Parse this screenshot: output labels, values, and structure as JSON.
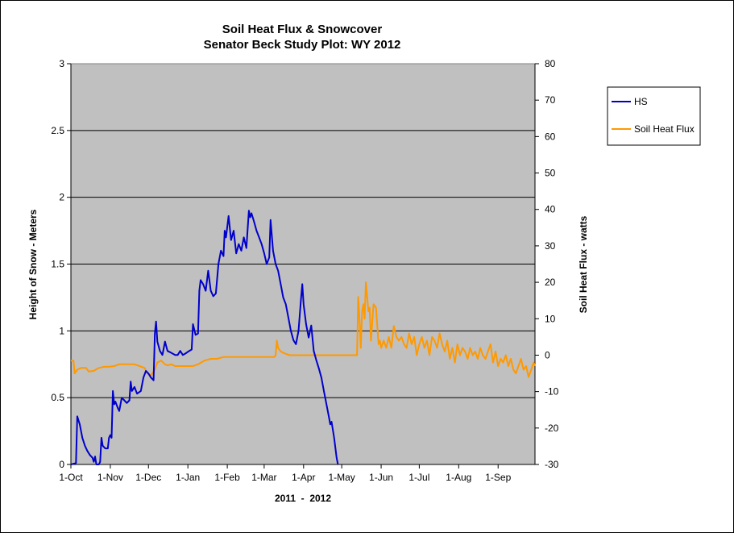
{
  "chart_data": {
    "type": "line",
    "title": "Soil Heat Flux & Snowcover",
    "subtitle": "Senator Beck Study Plot: WY 2012",
    "xlabel": "2011  -  2012",
    "ylabel_left": "Height of Snow - Meters",
    "ylabel_right": "Soil Heat Flux - watts",
    "x_tick_labels": [
      "1-Oct",
      "1-Nov",
      "1-Dec",
      "1-Jan",
      "1-Feb",
      "1-Mar",
      "1-Apr",
      "1-May",
      "1-Jun",
      "1-Jul",
      "1-Aug",
      "1-Sep"
    ],
    "x_tick_days": [
      0,
      31,
      61,
      92,
      123,
      152,
      183,
      213,
      244,
      274,
      305,
      336
    ],
    "x_range_days": [
      0,
      365
    ],
    "ylim_left": [
      0,
      3
    ],
    "y_ticks_left": [
      "0",
      "0.5",
      "1",
      "1.5",
      "2",
      "2.5",
      "3"
    ],
    "ylim_right": [
      -30,
      80
    ],
    "y_ticks_right": [
      "-30",
      "-20",
      "-10",
      "0",
      "10",
      "20",
      "30",
      "40",
      "50",
      "60",
      "70",
      "80"
    ],
    "grid": "horizontal",
    "plot_background": "#c0c0c0",
    "legend_position": "right",
    "series": [
      {
        "name": "HS",
        "axis": "left",
        "color": "#0000cc",
        "points": [
          [
            0,
            0
          ],
          [
            4,
            0.01
          ],
          [
            5,
            0.36
          ],
          [
            7,
            0.3
          ],
          [
            9,
            0.2
          ],
          [
            11,
            0.14
          ],
          [
            13,
            0.1
          ],
          [
            15,
            0.07
          ],
          [
            17,
            0.05
          ],
          [
            18,
            0.02
          ],
          [
            19,
            0.06
          ],
          [
            20,
            0
          ],
          [
            22,
            0
          ],
          [
            23,
            0.02
          ],
          [
            24,
            0.2
          ],
          [
            25,
            0.14
          ],
          [
            27,
            0.12
          ],
          [
            29,
            0.12
          ],
          [
            30,
            0.2
          ],
          [
            31,
            0.22
          ],
          [
            32,
            0.2
          ],
          [
            33,
            0.55
          ],
          [
            34,
            0.45
          ],
          [
            35,
            0.47
          ],
          [
            37,
            0.42
          ],
          [
            38,
            0.4
          ],
          [
            40,
            0.5
          ],
          [
            42,
            0.48
          ],
          [
            44,
            0.46
          ],
          [
            46,
            0.48
          ],
          [
            47,
            0.62
          ],
          [
            48,
            0.55
          ],
          [
            50,
            0.58
          ],
          [
            52,
            0.53
          ],
          [
            55,
            0.55
          ],
          [
            57,
            0.65
          ],
          [
            59,
            0.7
          ],
          [
            61,
            0.68
          ],
          [
            63,
            0.65
          ],
          [
            65,
            0.63
          ],
          [
            66,
            0.98
          ],
          [
            67,
            1.07
          ],
          [
            68,
            0.92
          ],
          [
            70,
            0.85
          ],
          [
            72,
            0.82
          ],
          [
            74,
            0.92
          ],
          [
            76,
            0.85
          ],
          [
            78,
            0.84
          ],
          [
            80,
            0.83
          ],
          [
            82,
            0.82
          ],
          [
            84,
            0.82
          ],
          [
            86,
            0.85
          ],
          [
            88,
            0.82
          ],
          [
            90,
            0.83
          ],
          [
            93,
            0.85
          ],
          [
            95,
            0.86
          ],
          [
            96,
            1.05
          ],
          [
            98,
            0.97
          ],
          [
            100,
            0.98
          ],
          [
            101,
            1.3
          ],
          [
            102,
            1.38
          ],
          [
            104,
            1.35
          ],
          [
            106,
            1.3
          ],
          [
            108,
            1.45
          ],
          [
            110,
            1.3
          ],
          [
            112,
            1.26
          ],
          [
            114,
            1.28
          ],
          [
            116,
            1.5
          ],
          [
            118,
            1.6
          ],
          [
            120,
            1.56
          ],
          [
            121,
            1.75
          ],
          [
            122,
            1.7
          ],
          [
            124,
            1.86
          ],
          [
            126,
            1.68
          ],
          [
            128,
            1.75
          ],
          [
            130,
            1.58
          ],
          [
            132,
            1.65
          ],
          [
            134,
            1.6
          ],
          [
            136,
            1.7
          ],
          [
            138,
            1.62
          ],
          [
            140,
            1.9
          ],
          [
            141,
            1.85
          ],
          [
            142,
            1.88
          ],
          [
            144,
            1.82
          ],
          [
            146,
            1.75
          ],
          [
            148,
            1.7
          ],
          [
            150,
            1.65
          ],
          [
            152,
            1.58
          ],
          [
            154,
            1.5
          ],
          [
            156,
            1.55
          ],
          [
            157,
            1.83
          ],
          [
            159,
            1.6
          ],
          [
            161,
            1.5
          ],
          [
            163,
            1.45
          ],
          [
            165,
            1.35
          ],
          [
            167,
            1.25
          ],
          [
            169,
            1.2
          ],
          [
            171,
            1.1
          ],
          [
            173,
            1.0
          ],
          [
            175,
            0.93
          ],
          [
            177,
            0.9
          ],
          [
            179,
            1.0
          ],
          [
            181,
            1.24
          ],
          [
            182,
            1.35
          ],
          [
            183,
            1.2
          ],
          [
            185,
            1.05
          ],
          [
            187,
            0.95
          ],
          [
            189,
            1.04
          ],
          [
            191,
            0.85
          ],
          [
            193,
            0.78
          ],
          [
            195,
            0.72
          ],
          [
            197,
            0.65
          ],
          [
            199,
            0.55
          ],
          [
            201,
            0.45
          ],
          [
            203,
            0.35
          ],
          [
            204,
            0.3
          ],
          [
            205,
            0.32
          ],
          [
            207,
            0.2
          ],
          [
            209,
            0.05
          ],
          [
            210,
            0
          ]
        ]
      },
      {
        "name": "Soil Heat Flux",
        "axis": "right",
        "color": "#ff9900",
        "points": [
          [
            0,
            -1.5
          ],
          [
            2,
            -1.5
          ],
          [
            3,
            -5
          ],
          [
            5,
            -4
          ],
          [
            8,
            -3.5
          ],
          [
            12,
            -3.5
          ],
          [
            14,
            -4.5
          ],
          [
            18,
            -4.3
          ],
          [
            22,
            -3.5
          ],
          [
            26,
            -3.2
          ],
          [
            30,
            -3.2
          ],
          [
            34,
            -3
          ],
          [
            38,
            -2.5
          ],
          [
            42,
            -2.5
          ],
          [
            46,
            -2.5
          ],
          [
            50,
            -2.5
          ],
          [
            54,
            -3
          ],
          [
            58,
            -3.5
          ],
          [
            60,
            -5
          ],
          [
            63,
            -5.5
          ],
          [
            66,
            -4
          ],
          [
            68,
            -2
          ],
          [
            71,
            -1.5
          ],
          [
            74,
            -2.5
          ],
          [
            76,
            -2.8
          ],
          [
            79,
            -2.5
          ],
          [
            82,
            -3
          ],
          [
            85,
            -3
          ],
          [
            88,
            -3
          ],
          [
            92,
            -3
          ],
          [
            96,
            -3
          ],
          [
            100,
            -2.5
          ],
          [
            105,
            -1.5
          ],
          [
            110,
            -1
          ],
          [
            115,
            -1
          ],
          [
            120,
            -0.5
          ],
          [
            125,
            -0.5
          ],
          [
            130,
            -0.5
          ],
          [
            135,
            -0.5
          ],
          [
            140,
            -0.5
          ],
          [
            145,
            -0.5
          ],
          [
            150,
            -0.5
          ],
          [
            155,
            -0.5
          ],
          [
            160,
            -0.5
          ],
          [
            161,
            0
          ],
          [
            162,
            4
          ],
          [
            163,
            2
          ],
          [
            165,
            1
          ],
          [
            168,
            0.5
          ],
          [
            172,
            0
          ],
          [
            180,
            0
          ],
          [
            190,
            0
          ],
          [
            200,
            0
          ],
          [
            210,
            0
          ],
          [
            220,
            0
          ],
          [
            225,
            0
          ],
          [
            226,
            16
          ],
          [
            227,
            10
          ],
          [
            228,
            2
          ],
          [
            229,
            12
          ],
          [
            230,
            14
          ],
          [
            231,
            10
          ],
          [
            232,
            20
          ],
          [
            234,
            12
          ],
          [
            235,
            13
          ],
          [
            236,
            4
          ],
          [
            237,
            9
          ],
          [
            238,
            14
          ],
          [
            240,
            13
          ],
          [
            241,
            8
          ],
          [
            242,
            3
          ],
          [
            243,
            4
          ],
          [
            244,
            2
          ],
          [
            246,
            4
          ],
          [
            248,
            2
          ],
          [
            250,
            5
          ],
          [
            252,
            2
          ],
          [
            254,
            8
          ],
          [
            256,
            5
          ],
          [
            258,
            4
          ],
          [
            260,
            5
          ],
          [
            262,
            3
          ],
          [
            264,
            2
          ],
          [
            266,
            6
          ],
          [
            268,
            3
          ],
          [
            270,
            5
          ],
          [
            272,
            0
          ],
          [
            274,
            3
          ],
          [
            276,
            5
          ],
          [
            278,
            2
          ],
          [
            280,
            4
          ],
          [
            282,
            0
          ],
          [
            284,
            5
          ],
          [
            286,
            4
          ],
          [
            288,
            2
          ],
          [
            290,
            6
          ],
          [
            292,
            3
          ],
          [
            294,
            1
          ],
          [
            296,
            4
          ],
          [
            298,
            -1
          ],
          [
            300,
            2
          ],
          [
            302,
            -2
          ],
          [
            304,
            3
          ],
          [
            306,
            0
          ],
          [
            308,
            2
          ],
          [
            310,
            1
          ],
          [
            312,
            -1
          ],
          [
            314,
            2
          ],
          [
            316,
            0
          ],
          [
            318,
            1
          ],
          [
            320,
            -1
          ],
          [
            322,
            2
          ],
          [
            324,
            0
          ],
          [
            326,
            -1
          ],
          [
            328,
            1
          ],
          [
            330,
            3
          ],
          [
            332,
            -2
          ],
          [
            334,
            1
          ],
          [
            336,
            -3
          ],
          [
            338,
            -1
          ],
          [
            340,
            -2
          ],
          [
            342,
            0
          ],
          [
            344,
            -3
          ],
          [
            346,
            -1
          ],
          [
            348,
            -4
          ],
          [
            350,
            -5
          ],
          [
            352,
            -3
          ],
          [
            354,
            -1
          ],
          [
            356,
            -4
          ],
          [
            358,
            -3
          ],
          [
            360,
            -6
          ],
          [
            362,
            -4
          ],
          [
            364,
            -2
          ],
          [
            365,
            -3
          ]
        ]
      }
    ]
  }
}
